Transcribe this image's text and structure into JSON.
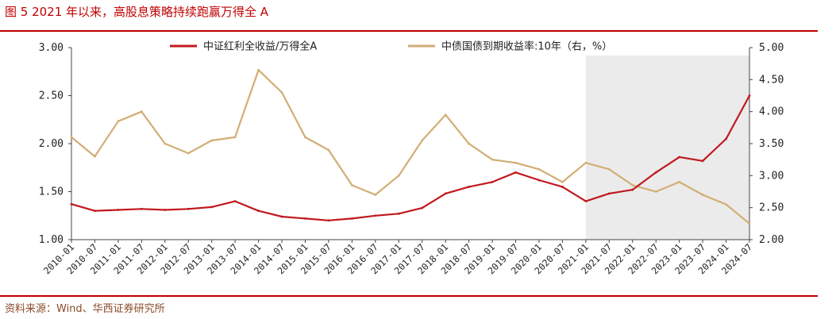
{
  "title": "图 5 2021 年以来，高股息策略持续跑赢万得全 A",
  "source": "资料来源：Wind、华西证券研究所",
  "colors": {
    "accent": "#c00000",
    "series1": "#c0191f",
    "series2": "#d2ae74",
    "shade": "#ebebeb"
  },
  "chart_data": {
    "type": "line",
    "legend": {
      "placement": "top"
    },
    "grid": false,
    "shaded_region": {
      "from": "2021-01",
      "to": "2024-07"
    },
    "x_ticks": [
      "2010-01",
      "2010-07",
      "2011-01",
      "2011-07",
      "2012-01",
      "2012-07",
      "2013-01",
      "2013-07",
      "2014-01",
      "2014-07",
      "2015-01",
      "2015-07",
      "2016-01",
      "2016-07",
      "2017-01",
      "2017-07",
      "2018-01",
      "2018-07",
      "2019-01",
      "2019-07",
      "2020-01",
      "2020-07",
      "2021-01",
      "2021-07",
      "2022-01",
      "2022-07",
      "2023-01",
      "2023-07",
      "2024-01",
      "2024-07"
    ],
    "y_left": {
      "range": [
        1.0,
        3.0
      ],
      "ticks": [
        "1.00",
        "1.50",
        "2.00",
        "2.50",
        "3.00"
      ]
    },
    "y_right": {
      "range": [
        2.0,
        5.0
      ],
      "ticks": [
        "2.00",
        "2.50",
        "3.00",
        "3.50",
        "4.00",
        "4.50",
        "5.00"
      ]
    },
    "series": [
      {
        "name": "中证红利全收益/万得全A",
        "axis": "left",
        "x": [
          "2010-01",
          "2010-07",
          "2011-01",
          "2011-07",
          "2012-01",
          "2012-07",
          "2013-01",
          "2013-07",
          "2014-01",
          "2014-07",
          "2015-01",
          "2015-07",
          "2016-01",
          "2016-07",
          "2017-01",
          "2017-07",
          "2018-01",
          "2018-07",
          "2019-01",
          "2019-07",
          "2020-01",
          "2020-07",
          "2021-01",
          "2021-07",
          "2022-01",
          "2022-07",
          "2023-01",
          "2023-07",
          "2024-01",
          "2024-07"
        ],
        "values": [
          1.37,
          1.3,
          1.31,
          1.32,
          1.31,
          1.32,
          1.34,
          1.4,
          1.3,
          1.24,
          1.22,
          1.2,
          1.22,
          1.25,
          1.27,
          1.33,
          1.48,
          1.55,
          1.6,
          1.7,
          1.62,
          1.55,
          1.4,
          1.48,
          1.52,
          1.7,
          1.86,
          1.82,
          2.05,
          2.5
        ]
      },
      {
        "name": "中债国债到期收益率:10年（右，%）",
        "axis": "right",
        "x": [
          "2010-01",
          "2010-07",
          "2011-01",
          "2011-07",
          "2012-01",
          "2012-07",
          "2013-01",
          "2013-07",
          "2014-01",
          "2014-07",
          "2015-01",
          "2015-07",
          "2016-01",
          "2016-07",
          "2017-01",
          "2017-07",
          "2018-01",
          "2018-07",
          "2019-01",
          "2019-07",
          "2020-01",
          "2020-07",
          "2021-01",
          "2021-07",
          "2022-01",
          "2022-07",
          "2023-01",
          "2023-07",
          "2024-01",
          "2024-07"
        ],
        "values": [
          3.6,
          3.3,
          3.85,
          4.0,
          3.5,
          3.35,
          3.55,
          3.6,
          4.65,
          4.3,
          3.6,
          3.4,
          2.85,
          2.7,
          3.0,
          3.55,
          3.95,
          3.5,
          3.25,
          3.2,
          3.1,
          2.9,
          3.2,
          3.1,
          2.85,
          2.75,
          2.9,
          2.7,
          2.55,
          2.25
        ]
      }
    ]
  }
}
